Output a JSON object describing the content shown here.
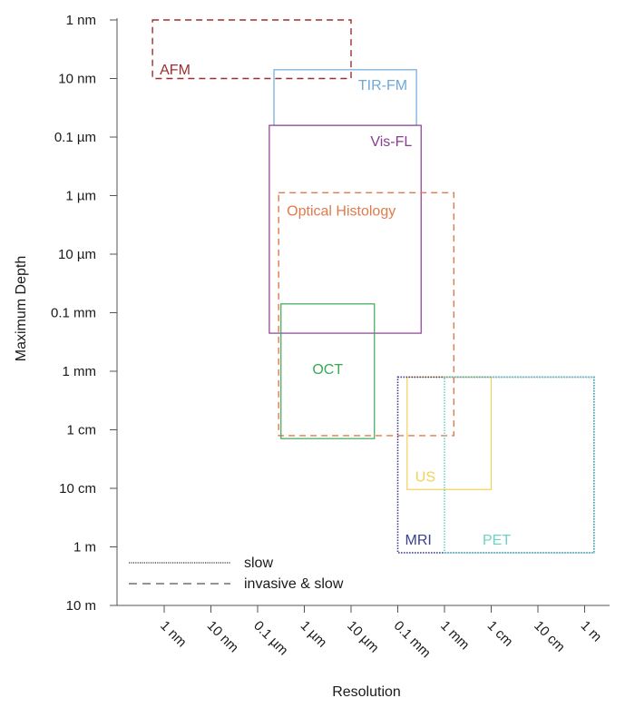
{
  "chart_data": {
    "type": "region",
    "xlabel": "Resolution",
    "ylabel": "Maximum Depth",
    "x_ticks": [
      "1 nm",
      "10 nm",
      "0.1 µm",
      "1 µm",
      "10 µm",
      "0.1 mm",
      "1 mm",
      "1 cm",
      "10 cm",
      "1 m"
    ],
    "y_ticks": [
      "1 nm",
      "10 nm",
      "0.1 µm",
      "1 µm",
      "10 µm",
      "0.1 mm",
      "1 mm",
      "1 cm",
      "10 cm",
      "1 m",
      "10 m"
    ],
    "x_log10_m": [
      -9,
      -8,
      -7,
      -6,
      -5,
      -4,
      -3,
      -2,
      -1,
      0
    ],
    "y_log10_m": [
      -9,
      -8,
      -7,
      -6,
      -5,
      -4,
      -3,
      -2,
      -1,
      0,
      1
    ],
    "regions": [
      {
        "name": "AFM",
        "style": "dashed",
        "color": "#9b2f2f",
        "resolution_log10_m": [
          -9.25,
          -5.0
        ],
        "depth_log10_m": [
          -9.0,
          -8.0
        ]
      },
      {
        "name": "TIR-FM",
        "style": "solid",
        "color": "#6fa8d8",
        "resolution_log10_m": [
          -6.65,
          -3.6
        ],
        "depth_log10_m": [
          -8.15,
          -7.2
        ]
      },
      {
        "name": "Vis-FL",
        "style": "solid",
        "color": "#8b3c91",
        "resolution_log10_m": [
          -6.75,
          -3.5
        ],
        "depth_log10_m": [
          -7.2,
          -3.65
        ]
      },
      {
        "name": "Optical Histology",
        "style": "dashed",
        "color": "#e07a4a",
        "resolution_log10_m": [
          -6.55,
          -2.8
        ],
        "depth_log10_m": [
          -6.05,
          -1.9
        ]
      },
      {
        "name": "OCT",
        "style": "solid",
        "color": "#3aa856",
        "resolution_log10_m": [
          -6.5,
          -4.5
        ],
        "depth_log10_m": [
          -4.15,
          -1.85
        ]
      },
      {
        "name": "US",
        "style": "solid",
        "color": "#f2d15a",
        "resolution_log10_m": [
          -3.8,
          -2.0
        ],
        "depth_log10_m": [
          -2.9,
          -0.98
        ]
      },
      {
        "name": "MRI",
        "style": "dotted",
        "color": "#3b3f8f",
        "resolution_log10_m": [
          -4.0,
          0.2
        ],
        "depth_log10_m": [
          -2.9,
          0.1
        ]
      },
      {
        "name": "PET",
        "style": "dotted",
        "color": "#6fd3c4",
        "resolution_log10_m": [
          -3.0,
          0.2
        ],
        "depth_log10_m": [
          -2.9,
          0.1
        ]
      }
    ],
    "legend": {
      "placement": "bottom-left",
      "items": [
        {
          "style": "dotted",
          "label": "slow"
        },
        {
          "style": "dashed",
          "label": "invasive & slow"
        }
      ]
    },
    "grid": false
  }
}
